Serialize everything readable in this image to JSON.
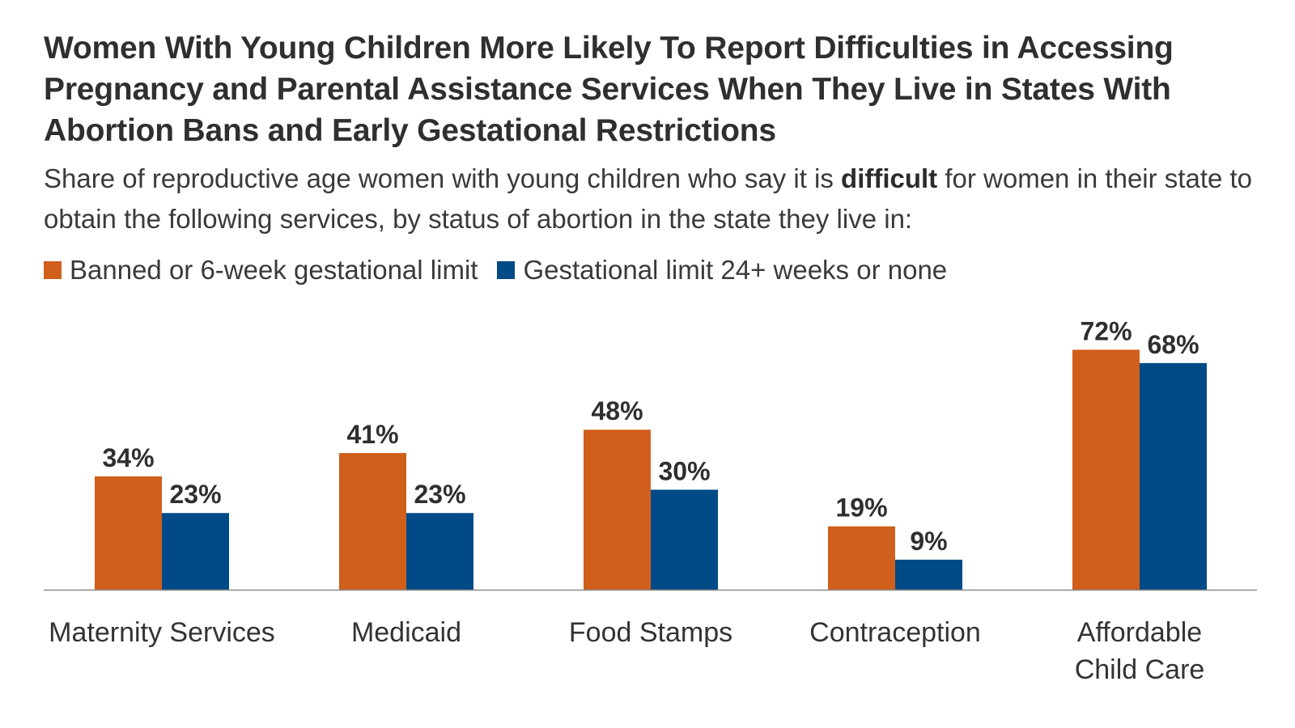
{
  "title": "Women With Young Children More Likely To Report Difficulties in Accessing Pregnancy and Parental Assistance Services When They Live in States With Abortion Bans and Early Gestational Restrictions",
  "subtitle": {
    "before": "Share of reproductive age women with young children who say it is ",
    "bold": "difficult",
    "after": " for women in their state to obtain the following services, by status of abortion in the state they live in:"
  },
  "colors": {
    "banned": "#d05f1c",
    "limit": "#004a87"
  },
  "chart_data": {
    "type": "bar",
    "categories": [
      [
        "Maternity Services"
      ],
      [
        "Medicaid"
      ],
      [
        "Food Stamps"
      ],
      [
        "Contraception"
      ],
      [
        "Affordable",
        "Child Care"
      ]
    ],
    "series": [
      {
        "name": "Banned or 6-week gestational limit",
        "values": [
          34,
          41,
          48,
          19,
          72
        ],
        "labels": [
          "34%",
          "41%",
          "48%",
          "19%",
          "72%"
        ]
      },
      {
        "name": "Gestational limit 24+ weeks or none",
        "values": [
          23,
          23,
          30,
          9,
          68
        ],
        "labels": [
          "23%",
          "23%",
          "30%",
          "9%",
          "68%"
        ]
      }
    ],
    "ylim": [
      0,
      100
    ],
    "grid": false,
    "legend": "top-left"
  }
}
